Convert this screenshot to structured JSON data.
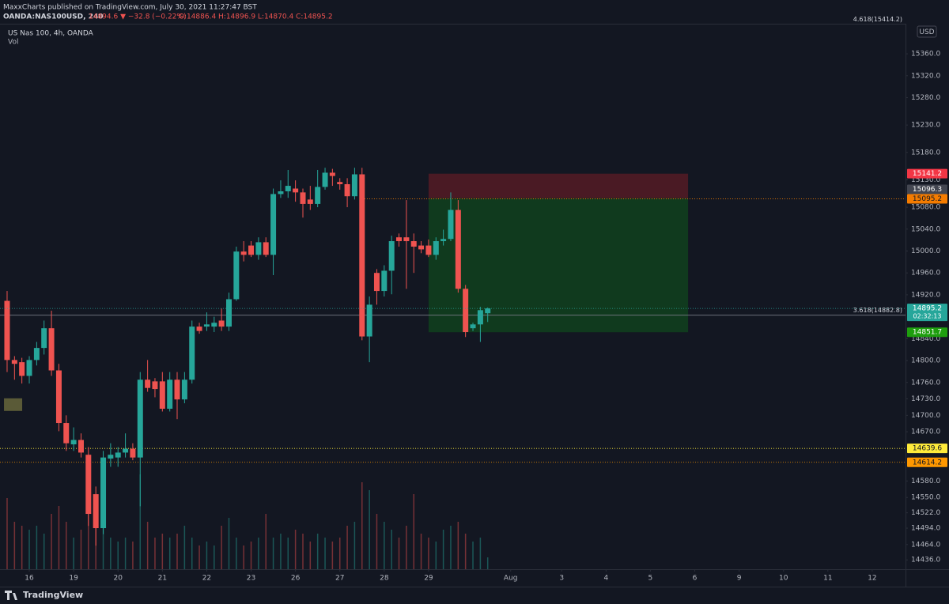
{
  "chart_data": {
    "type": "candlestick",
    "published": "MaxxCharts published on TradingView.com, July 30, 2021 11:27:47 BST",
    "symbol": "OANDA:NAS100USD, 240",
    "change": "14894.6 ▼ −32.8 (−0.22%)",
    "ohlc_label": "O:14886.4 H:14896.9 L:14870.4 C:14895.2",
    "title": "US Nas 100, 4h, OANDA",
    "volume_label": "Vol",
    "currency": "USD",
    "countdown": "02:32:13",
    "brand": "TradingView",
    "up_color": "#26a69a",
    "down_color": "#ef5350",
    "x": [
      -0.5,
      -0.333,
      -0.167,
      0,
      0.167,
      0.333,
      0.5,
      0.667,
      0.833,
      1,
      1.167,
      1.333,
      1.5,
      1.667,
      1.833,
      2,
      2.167,
      2.333,
      2.5,
      2.667,
      2.833,
      3,
      3.167,
      3.333,
      3.5,
      3.667,
      3.833,
      4,
      4.167,
      4.333,
      4.5,
      4.667,
      4.833,
      5,
      5.167,
      5.333,
      5.5,
      5.667,
      5.833,
      6,
      6.167,
      6.333,
      6.5,
      6.667,
      6.833,
      7,
      7.167,
      7.333,
      7.5,
      7.667,
      7.833,
      8,
      8.167,
      8.333,
      8.5,
      8.667,
      8.833,
      9,
      9.167,
      9.333,
      9.5,
      9.667,
      9.833,
      10,
      10.167,
      10.333
    ],
    "open": [
      14909,
      14801,
      14797,
      14772,
      14801,
      14823,
      14859,
      14782,
      14686,
      14647,
      14655,
      14628,
      14556,
      14494,
      14621,
      14623,
      14632,
      14639,
      14623,
      14765,
      14762,
      14762,
      14712,
      14765,
      14729,
      14765,
      14862,
      14862,
      14862,
      14873,
      14862,
      14912,
      14999,
      15010,
      14993,
      15016,
      14993,
      15104,
      15109,
      15114,
      15107,
      15094,
      15086,
      15117,
      15143,
      15126,
      15122,
      15100,
      15140,
      14844,
      14960,
      14927,
      14964,
      15025,
      15025,
      15018,
      15010,
      15010,
      14993,
      15018,
      15022,
      15075,
      14931,
      14859,
      14866,
      14886.4
    ],
    "high": [
      14927,
      14808,
      14805,
      14808,
      14834,
      14873,
      14891,
      14794,
      14700,
      14678,
      14667,
      14642,
      14570,
      14635,
      14649,
      14642,
      14667,
      14649,
      14779,
      14801,
      14768,
      14779,
      14779,
      14779,
      14779,
      14873,
      14869,
      14888,
      14880,
      14895,
      14924,
      15008,
      15018,
      15018,
      15025,
      15025,
      15114,
      15129,
      15148,
      15129,
      15114,
      15119,
      15148,
      15152,
      15150,
      15133,
      15133,
      15152,
      15152,
      14917,
      14967,
      14974,
      15028,
      15032,
      15093,
      15032,
      15018,
      15021,
      15025,
      15039,
      15107,
      15093,
      14938,
      14869,
      14898,
      14896.9
    ],
    "low": [
      14779,
      14765,
      14758,
      14758,
      14791,
      14811,
      14772,
      14671,
      14635,
      14635,
      14623,
      14498,
      14462,
      14483,
      14606,
      14606,
      14623,
      14618,
      14534,
      14743,
      14733,
      14707,
      14707,
      14693,
      14722,
      14758,
      14849,
      14854,
      14852,
      14854,
      14854,
      14909,
      14981,
      14989,
      14984,
      14989,
      14956,
      15097,
      15097,
      15090,
      15061,
      15075,
      15080,
      15112,
      15119,
      15112,
      15080,
      15094,
      14837,
      14797,
      14902,
      14917,
      14921,
      15008,
      14931,
      14960,
      14996,
      14989,
      14984,
      15010,
      15018,
      14924,
      14843,
      14854,
      14834,
      14870.4
    ],
    "close": [
      14801,
      14794,
      14772,
      14801,
      14823,
      14859,
      14782,
      14686,
      14649,
      14655,
      14632,
      14520,
      14494,
      14623,
      14628,
      14632,
      14639,
      14623,
      14765,
      14750,
      14748,
      14712,
      14765,
      14729,
      14765,
      14862,
      14854,
      14866,
      14869,
      14862,
      14912,
      14999,
      14993,
      14993,
      15016,
      14993,
      15104,
      15109,
      15119,
      15107,
      15086,
      15086,
      15117,
      15143,
      15137,
      15122,
      15100,
      15140,
      14844,
      14902,
      14927,
      14964,
      15018,
      15018,
      15018,
      15008,
      15003,
      14993,
      15018,
      15022,
      15075,
      14931,
      14852,
      14866,
      14892,
      14895.2
    ],
    "volume": [
      90,
      60,
      55,
      50,
      55,
      45,
      70,
      80,
      60,
      40,
      50,
      70,
      85,
      60,
      40,
      35,
      40,
      35,
      120,
      60,
      40,
      45,
      40,
      45,
      55,
      40,
      30,
      35,
      30,
      55,
      65,
      40,
      30,
      35,
      40,
      70,
      40,
      45,
      40,
      50,
      45,
      35,
      45,
      40,
      35,
      40,
      55,
      60,
      110,
      100,
      70,
      60,
      50,
      40,
      55,
      95,
      45,
      40,
      35,
      50,
      55,
      60,
      45,
      35,
      40,
      15
    ],
    "vlim": [
      0,
      130
    ],
    "xlim": [
      -0.66,
      19.75
    ],
    "xticks": [
      {
        "value": 0,
        "label": "16"
      },
      {
        "value": 1,
        "label": "19"
      },
      {
        "value": 2,
        "label": "20"
      },
      {
        "value": 3,
        "label": "21"
      },
      {
        "value": 4,
        "label": "22"
      },
      {
        "value": 5,
        "label": "23"
      },
      {
        "value": 6,
        "label": "26"
      },
      {
        "value": 7,
        "label": "27"
      },
      {
        "value": 8,
        "label": "28"
      },
      {
        "value": 9,
        "label": "29"
      },
      {
        "value": 10.85,
        "label": "Aug"
      },
      {
        "value": 12,
        "label": "3"
      },
      {
        "value": 13,
        "label": "4"
      },
      {
        "value": 14,
        "label": "5"
      },
      {
        "value": 15,
        "label": "6"
      },
      {
        "value": 16,
        "label": "9"
      },
      {
        "value": 17,
        "label": "10"
      },
      {
        "value": 18,
        "label": "11"
      },
      {
        "value": 19,
        "label": "12"
      }
    ],
    "ylim": [
      14419,
      15415
    ],
    "yticks": [
      {
        "value": 15360,
        "label": "15360.0"
      },
      {
        "value": 15320,
        "label": "15320.0"
      },
      {
        "value": 15280,
        "label": "15280.0"
      },
      {
        "value": 15230,
        "label": "15230.0"
      },
      {
        "value": 15180,
        "label": "15180.0"
      },
      {
        "value": 15130,
        "label": "15130.0"
      },
      {
        "value": 15080,
        "label": "15080.0"
      },
      {
        "value": 15040,
        "label": "15040.0"
      },
      {
        "value": 15000,
        "label": "15000.0"
      },
      {
        "value": 14960,
        "label": "14960.0"
      },
      {
        "value": 14920,
        "label": "14920.0"
      },
      {
        "value": 14840,
        "label": "14840.0"
      },
      {
        "value": 14800,
        "label": "14800.0"
      },
      {
        "value": 14760,
        "label": "14760.0"
      },
      {
        "value": 14730,
        "label": "14730.0"
      },
      {
        "value": 14700,
        "label": "14700.0"
      },
      {
        "value": 14670,
        "label": "14670.0"
      },
      {
        "value": 14580,
        "label": "14580.0"
      },
      {
        "value": 14550,
        "label": "14550.0"
      },
      {
        "value": 14522,
        "label": "14522.0"
      },
      {
        "value": 14494,
        "label": "14494.0"
      },
      {
        "value": 14464,
        "label": "14464.0"
      },
      {
        "value": 14436,
        "label": "14436.0"
      }
    ],
    "grid": false,
    "levels": [
      {
        "value": 15141.2,
        "color": "#f23645",
        "text_color": "#ffffff"
      },
      {
        "value": 15096.3,
        "color": "#434651",
        "text_color": "#ffffff"
      },
      {
        "value": 15095.2,
        "color": "#f57c00",
        "text_color": "#131722",
        "line": "dotted",
        "x0": 7.45
      },
      {
        "value": 14851.7,
        "color": "#1e9e0e",
        "text_color": "#ffffff"
      },
      {
        "value": 14639.6,
        "color": "#ffeb3b",
        "text_color": "#131722",
        "line": "dotted"
      },
      {
        "value": 14614.2,
        "color": "#ff9800",
        "text_color": "#131722",
        "line": "dotted"
      }
    ],
    "fib": [
      {
        "value": 14882.8,
        "label": "3.618(14882.8)"
      },
      {
        "value": 15414.2,
        "label": "4.618(15414.2)"
      }
    ],
    "position": {
      "x": [
        9.0,
        14.85
      ],
      "stop": 15141.2,
      "entry": 15096.3,
      "target": 14851.7,
      "stop_color": "#4a1a24",
      "target_color": "#103a1e"
    },
    "zone": {
      "x": [
        -0.57,
        -0.16
      ],
      "y": [
        14708,
        14731
      ],
      "color": "#5a5a37"
    }
  }
}
